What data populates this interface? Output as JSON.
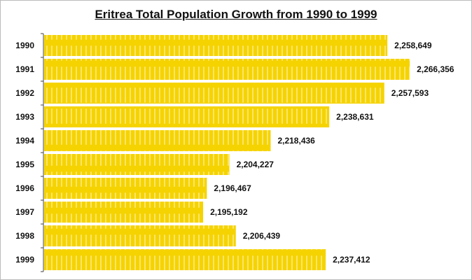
{
  "chart_data": {
    "type": "bar",
    "orientation": "horizontal",
    "title": "Eritrea Total Population Growth from 1990 to 1999",
    "categories": [
      "1990",
      "1991",
      "1992",
      "1993",
      "1994",
      "1995",
      "1996",
      "1997",
      "1998",
      "1999"
    ],
    "values": [
      2258649,
      2266356,
      2257593,
      2238631,
      2218436,
      2204227,
      2196467,
      2195192,
      2206439,
      2237412
    ],
    "value_labels": [
      "2,258,649",
      "2,266,356",
      "2,257,593",
      "2,238,631",
      "2,218,436",
      "2,204,227",
      "2,196,467",
      "2,195,192",
      "2,206,439",
      "2,237,412"
    ],
    "bar_color": "#f5d300",
    "grid": false,
    "legend": "none"
  }
}
